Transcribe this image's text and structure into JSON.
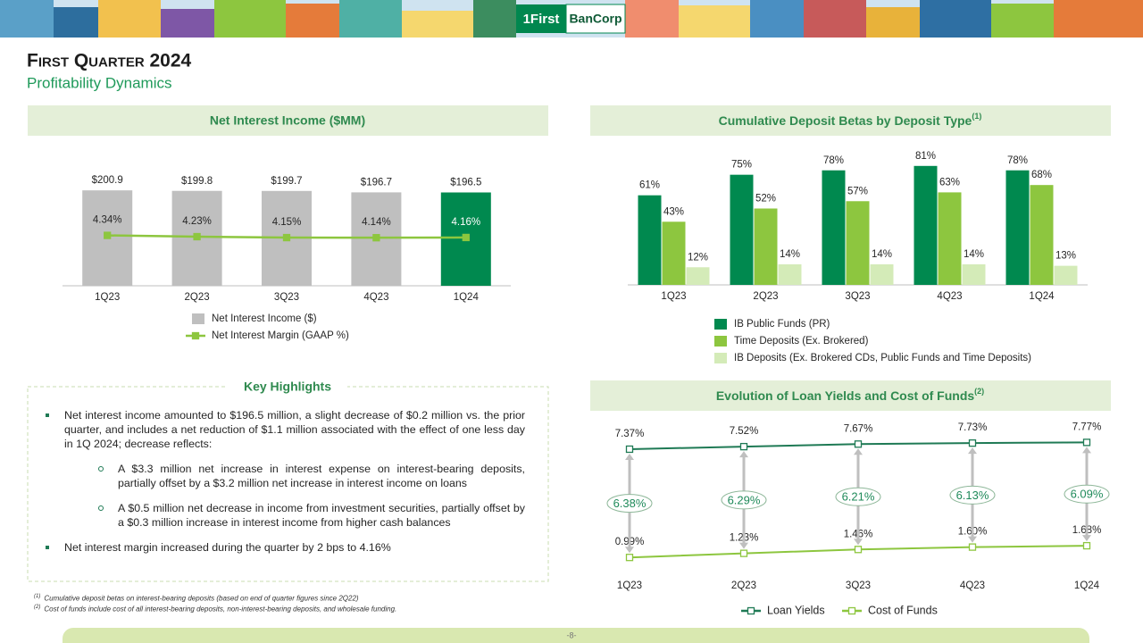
{
  "logo": [
    "1First",
    "BanCorp"
  ],
  "title": "First Quarter 2024",
  "subtitle": "Profitability Dynamics",
  "chart_data": [
    {
      "type": "bar",
      "title": "Net Interest Income ($MM)",
      "categories": [
        "1Q23",
        "2Q23",
        "3Q23",
        "4Q23",
        "1Q24"
      ],
      "ylim": [
        0,
        220
      ],
      "y2lim": [
        0,
        9
      ],
      "series": [
        {
          "name": "Net Interest Income ($)",
          "color": "#bfbfbf",
          "colors": [
            "#bfbfbf",
            "#bfbfbf",
            "#bfbfbf",
            "#bfbfbf",
            "#00894f"
          ],
          "values": [
            200.9,
            199.8,
            199.7,
            196.7,
            196.5
          ],
          "value_labels": [
            "$200.9",
            "$199.8",
            "$199.7",
            "$196.7",
            "$196.5"
          ]
        },
        {
          "name": "Net Interest Margin (GAAP %)",
          "type": "line",
          "axis": "y2",
          "color": "#8dc63f",
          "values": [
            4.34,
            4.23,
            4.15,
            4.14,
            4.16
          ],
          "value_labels": [
            "4.34%",
            "4.23%",
            "4.15%",
            "4.14%",
            "4.16%"
          ]
        }
      ]
    },
    {
      "type": "bar",
      "title": "Cumulative Deposit Betas by Deposit Type",
      "title_note": "(1)",
      "categories": [
        "1Q23",
        "2Q23",
        "3Q23",
        "4Q23",
        "1Q24"
      ],
      "ylim": [
        0,
        90
      ],
      "series": [
        {
          "name": "IB Public Funds (PR)",
          "color": "#00894f",
          "values": [
            61,
            75,
            78,
            81,
            78
          ],
          "value_labels": [
            "61%",
            "75%",
            "78%",
            "81%",
            "78%"
          ]
        },
        {
          "name": "Time Deposits (Ex. Brokered)",
          "color": "#8dc63f",
          "values": [
            43,
            52,
            57,
            63,
            68
          ],
          "value_labels": [
            "43%",
            "52%",
            "57%",
            "63%",
            "68%"
          ]
        },
        {
          "name": "IB Deposits (Ex. Brokered CDs, Public Funds and Time Deposits)",
          "color": "#d4ebb8",
          "values": [
            12,
            14,
            14,
            14,
            13
          ],
          "value_labels": [
            "12%",
            "14%",
            "14%",
            "14%",
            "13%"
          ]
        }
      ]
    },
    {
      "type": "line",
      "title": "Evolution of Loan Yields and Cost of Funds",
      "title_note": "(2)",
      "categories": [
        "1Q23",
        "2Q23",
        "3Q23",
        "4Q23",
        "1Q24"
      ],
      "ylim": [
        0,
        8.5
      ],
      "series": [
        {
          "name": "Loan Yields",
          "color": "#1f7a55",
          "values": [
            7.37,
            7.52,
            7.67,
            7.73,
            7.77
          ],
          "value_labels": [
            "7.37%",
            "7.52%",
            "7.67%",
            "7.73%",
            "7.77%"
          ]
        },
        {
          "name": "Cost of Funds",
          "color": "#8dc63f",
          "values": [
            0.99,
            1.23,
            1.46,
            1.6,
            1.68
          ],
          "value_labels": [
            "0.99%",
            "1.23%",
            "1.46%",
            "1.60%",
            "1.68%"
          ]
        }
      ],
      "spreads": {
        "values": [
          6.38,
          6.29,
          6.21,
          6.13,
          6.09
        ],
        "value_labels": [
          "6.38%",
          "6.29%",
          "6.21%",
          "6.13%",
          "6.09%"
        ]
      }
    }
  ],
  "highlights": {
    "title": "Key Highlights",
    "items": [
      {
        "text": "Net interest income amounted to $196.5 million, a slight decrease of $0.2 million vs. the prior quarter, and includes a net reduction of $1.1 million associated with the effect of one less day in 1Q 2024; decrease reflects:",
        "subitems": [
          "A $3.3 million net increase in interest expense on interest-bearing deposits, partially offset by a $3.2 million net increase in interest income on loans",
          "A $0.5 million net decrease in income from investment securities, partially offset by a $0.3 million increase in interest income from higher cash balances"
        ]
      },
      {
        "text": "Net interest margin increased during the quarter by 2 bps to 4.16%"
      }
    ]
  },
  "footnotes": [
    {
      "mark": "(1)",
      "text": "Cumulative deposit betas on interest-bearing deposits (based on end of quarter figures since 2Q22)"
    },
    {
      "mark": "(2)",
      "text": "Cost of funds include cost of all interest-bearing deposits, non-interest-bearing deposits, and wholesale funding."
    }
  ],
  "page_number": "-8-"
}
